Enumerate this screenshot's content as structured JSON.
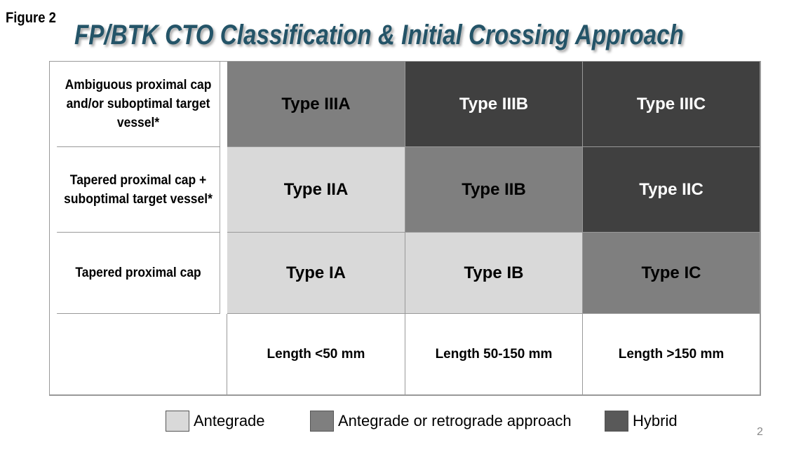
{
  "figure_label": "Figure 2",
  "title": "FP/BTK CTO Classification & Initial Crossing Approach",
  "rows": [
    {
      "label": "Ambiguous proximal cap and/or suboptimal target vessel*",
      "cells": [
        {
          "text": "Type IIIA",
          "shade": "M"
        },
        {
          "text": "Type IIIB",
          "shade": "D"
        },
        {
          "text": "Type IIIC",
          "shade": "D"
        }
      ]
    },
    {
      "label": "Tapered proximal cap + suboptimal target vessel*",
      "cells": [
        {
          "text": "Type IIA",
          "shade": "L"
        },
        {
          "text": "Type IIB",
          "shade": "M"
        },
        {
          "text": "Type IIC",
          "shade": "D"
        }
      ]
    },
    {
      "label": "Tapered proximal cap",
      "cells": [
        {
          "text": "Type IA",
          "shade": "L"
        },
        {
          "text": "Type IB",
          "shade": "L"
        },
        {
          "text": "Type IC",
          "shade": "M"
        }
      ]
    }
  ],
  "lengths": [
    "Length <50 mm",
    "Length 50-150 mm",
    "Length >150 mm"
  ],
  "legend": [
    {
      "label": "Antegrade",
      "color": "#d9d9d9"
    },
    {
      "label": "Antegrade or retrograde approach",
      "color": "#7f7f7f"
    },
    {
      "label": "Hybrid",
      "color": "#595959"
    }
  ],
  "page_number": "2"
}
